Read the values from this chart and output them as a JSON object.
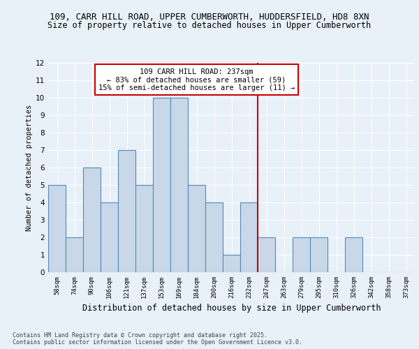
{
  "title_line1": "109, CARR HILL ROAD, UPPER CUMBERWORTH, HUDDERSFIELD, HD8 8XN",
  "title_line2": "Size of property relative to detached houses in Upper Cumberworth",
  "xlabel": "Distribution of detached houses by size in Upper Cumberworth",
  "ylabel": "Number of detached properties",
  "categories": [
    "58sqm",
    "74sqm",
    "90sqm",
    "106sqm",
    "121sqm",
    "137sqm",
    "153sqm",
    "169sqm",
    "184sqm",
    "200sqm",
    "216sqm",
    "232sqm",
    "247sqm",
    "263sqm",
    "279sqm",
    "295sqm",
    "310sqm",
    "326sqm",
    "342sqm",
    "358sqm",
    "373sqm"
  ],
  "values": [
    5,
    2,
    6,
    4,
    7,
    5,
    10,
    10,
    5,
    4,
    1,
    4,
    2,
    0,
    2,
    2,
    0,
    2,
    0,
    0,
    0
  ],
  "bar_color": "#c8d8e8",
  "bar_edge_color": "#5588bb",
  "red_line_x": 11.5,
  "annotation_text": "109 CARR HILL ROAD: 237sqm\n← 83% of detached houses are smaller (59)\n15% of semi-detached houses are larger (11) →",
  "annotation_box_color": "#ffffff",
  "annotation_box_edge_color": "#cc0000",
  "red_line_color": "#cc0000",
  "ylim": [
    0,
    12
  ],
  "yticks": [
    0,
    1,
    2,
    3,
    4,
    5,
    6,
    7,
    8,
    9,
    10,
    11,
    12
  ],
  "background_color": "#e8f0f8",
  "grid_color": "#ffffff",
  "footer_text": "Contains HM Land Registry data © Crown copyright and database right 2025.\nContains public sector information licensed under the Open Government Licence v3.0.",
  "title_fontsize": 9,
  "subtitle_fontsize": 8.5,
  "axis_label_fontsize": 7.5,
  "tick_fontsize": 6.5,
  "annotation_fontsize": 7.5
}
